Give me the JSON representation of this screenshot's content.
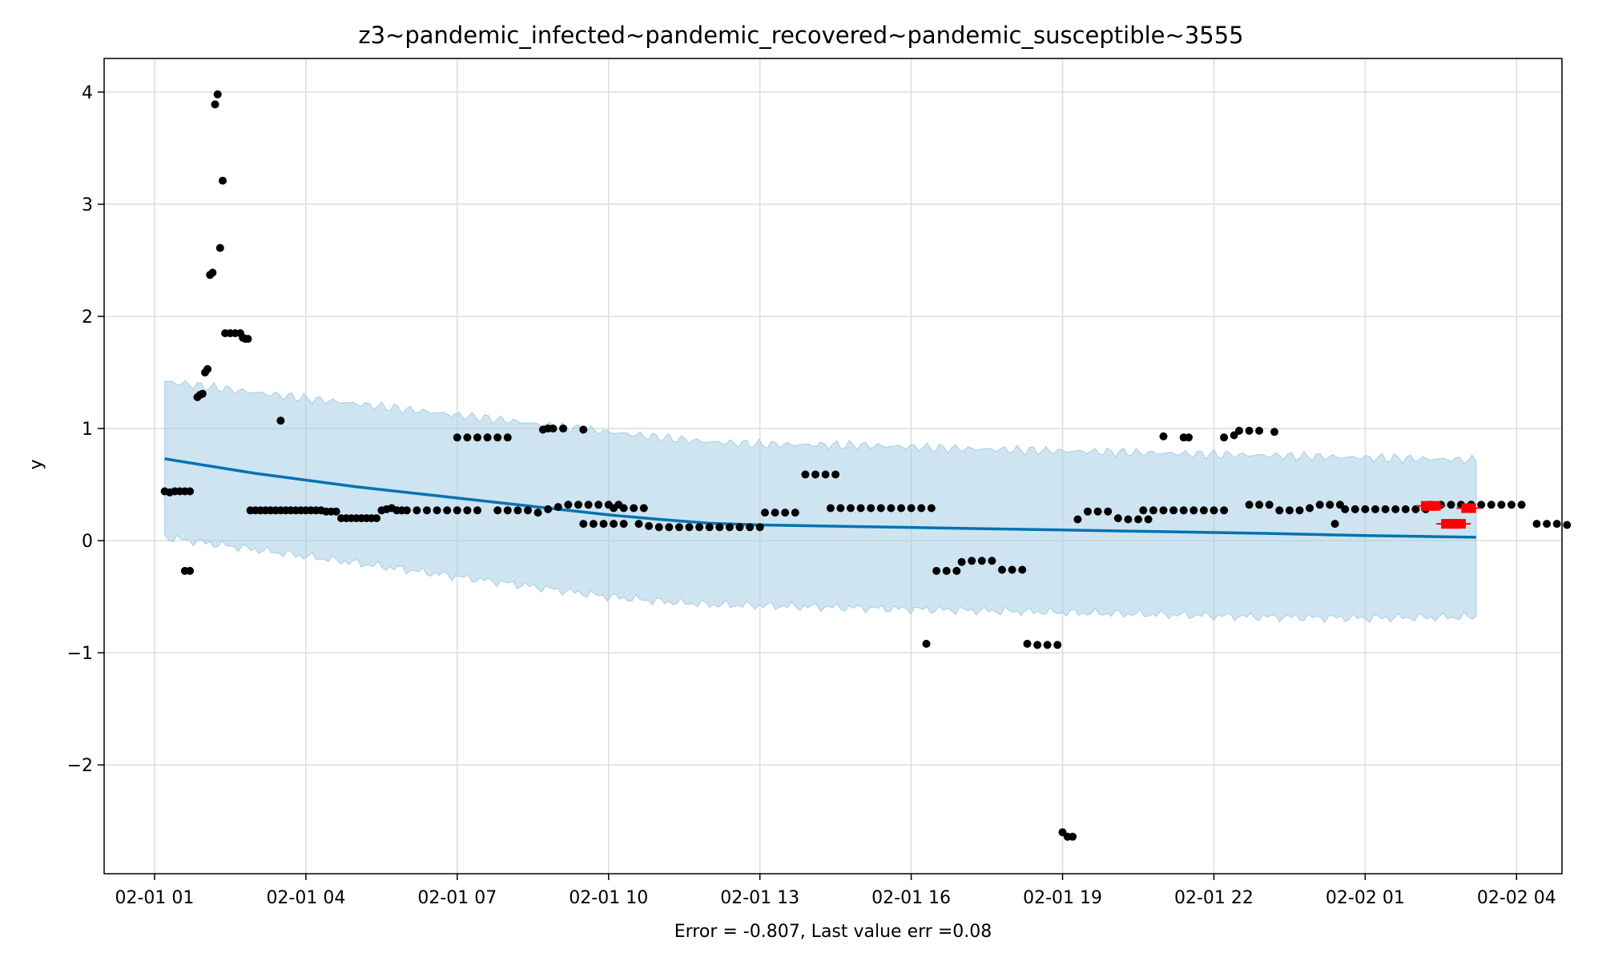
{
  "chart_data": {
    "type": "scatter",
    "title": "z3~pandemic_infected~pandemic_recovered~pandemic_susceptible~3555",
    "xlabel": "Error = -0.807, Last value err =0.08",
    "ylabel": "y",
    "x_unit": "hours",
    "xlim": [
      0.0,
      28.9
    ],
    "ylim": [
      -2.97,
      4.3
    ],
    "x_ticks": [
      {
        "value": 1,
        "label": "02-01 01"
      },
      {
        "value": 4,
        "label": "02-01 04"
      },
      {
        "value": 7,
        "label": "02-01 07"
      },
      {
        "value": 10,
        "label": "02-01 10"
      },
      {
        "value": 13,
        "label": "02-01 13"
      },
      {
        "value": 16,
        "label": "02-01 16"
      },
      {
        "value": 19,
        "label": "02-01 19"
      },
      {
        "value": 22,
        "label": "02-01 22"
      },
      {
        "value": 25,
        "label": "02-02 01"
      },
      {
        "value": 28,
        "label": "02-02 04"
      }
    ],
    "y_ticks": [
      {
        "value": -2,
        "label": "−2"
      },
      {
        "value": -1,
        "label": "−1"
      },
      {
        "value": 0,
        "label": "0"
      },
      {
        "value": 1,
        "label": "1"
      },
      {
        "value": 2,
        "label": "2"
      },
      {
        "value": 3,
        "label": "3"
      },
      {
        "value": 4,
        "label": "4"
      }
    ],
    "grid": true,
    "colors": {
      "observed": "#000000",
      "forecast_line": "#0072b2",
      "band_fill": "#a6cee3",
      "test_points": "#ff0000",
      "grid": "#dddddd"
    },
    "forecast": {
      "x": [
        1.2,
        3,
        5,
        7,
        9,
        10,
        11,
        12,
        13,
        15,
        17,
        19,
        21,
        23,
        25,
        27.2
      ],
      "yhat": [
        0.73,
        0.6,
        0.48,
        0.38,
        0.28,
        0.23,
        0.19,
        0.155,
        0.14,
        0.125,
        0.11,
        0.095,
        0.08,
        0.065,
        0.045,
        0.03
      ],
      "upper": [
        1.42,
        1.32,
        1.22,
        1.12,
        1.02,
        0.97,
        0.92,
        0.88,
        0.86,
        0.85,
        0.82,
        0.8,
        0.78,
        0.76,
        0.74,
        0.72
      ],
      "lower": [
        0.03,
        -0.08,
        -0.2,
        -0.32,
        -0.44,
        -0.5,
        -0.54,
        -0.57,
        -0.58,
        -0.6,
        -0.62,
        -0.64,
        -0.66,
        -0.68,
        -0.69,
        -0.68
      ]
    },
    "observed": [
      [
        1.2,
        0.44
      ],
      [
        1.3,
        0.43
      ],
      [
        1.4,
        0.44
      ],
      [
        1.5,
        0.44
      ],
      [
        1.6,
        0.44
      ],
      [
        1.7,
        0.44
      ],
      [
        1.6,
        -0.27
      ],
      [
        1.7,
        -0.27
      ],
      [
        1.85,
        1.28
      ],
      [
        1.9,
        1.3
      ],
      [
        1.95,
        1.31
      ],
      [
        2.0,
        1.5
      ],
      [
        2.05,
        1.53
      ],
      [
        2.1,
        2.37
      ],
      [
        2.15,
        2.39
      ],
      [
        2.2,
        3.89
      ],
      [
        2.25,
        3.98
      ],
      [
        2.3,
        2.61
      ],
      [
        2.35,
        3.21
      ],
      [
        2.4,
        1.85
      ],
      [
        2.5,
        1.85
      ],
      [
        2.6,
        1.85
      ],
      [
        2.7,
        1.85
      ],
      [
        2.75,
        1.81
      ],
      [
        2.8,
        1.8
      ],
      [
        2.85,
        1.8
      ],
      [
        2.9,
        0.27
      ],
      [
        3.0,
        0.27
      ],
      [
        3.1,
        0.27
      ],
      [
        3.2,
        0.27
      ],
      [
        3.3,
        0.27
      ],
      [
        3.4,
        0.27
      ],
      [
        3.5,
        0.27
      ],
      [
        3.6,
        0.27
      ],
      [
        3.7,
        0.27
      ],
      [
        3.8,
        0.27
      ],
      [
        3.9,
        0.27
      ],
      [
        4.0,
        0.27
      ],
      [
        4.1,
        0.27
      ],
      [
        4.2,
        0.27
      ],
      [
        4.3,
        0.27
      ],
      [
        4.4,
        0.26
      ],
      [
        4.5,
        0.26
      ],
      [
        4.6,
        0.26
      ],
      [
        3.5,
        1.07
      ],
      [
        4.7,
        0.2
      ],
      [
        4.8,
        0.2
      ],
      [
        4.9,
        0.2
      ],
      [
        5.0,
        0.2
      ],
      [
        5.1,
        0.2
      ],
      [
        5.2,
        0.2
      ],
      [
        5.3,
        0.2
      ],
      [
        5.4,
        0.2
      ],
      [
        5.5,
        0.27
      ],
      [
        5.6,
        0.28
      ],
      [
        5.7,
        0.29
      ],
      [
        5.8,
        0.27
      ],
      [
        5.9,
        0.27
      ],
      [
        6.0,
        0.27
      ],
      [
        6.2,
        0.27
      ],
      [
        6.4,
        0.27
      ],
      [
        6.6,
        0.27
      ],
      [
        6.8,
        0.27
      ],
      [
        7.0,
        0.27
      ],
      [
        7.2,
        0.27
      ],
      [
        7.4,
        0.27
      ],
      [
        7.0,
        0.92
      ],
      [
        7.2,
        0.92
      ],
      [
        7.4,
        0.92
      ],
      [
        7.6,
        0.92
      ],
      [
        7.8,
        0.92
      ],
      [
        8.0,
        0.92
      ],
      [
        7.8,
        0.27
      ],
      [
        8.0,
        0.27
      ],
      [
        8.2,
        0.27
      ],
      [
        8.4,
        0.27
      ],
      [
        8.6,
        0.25
      ],
      [
        8.8,
        0.28
      ],
      [
        9.0,
        0.3
      ],
      [
        8.7,
        0.99
      ],
      [
        8.8,
        1.0
      ],
      [
        8.9,
        1.0
      ],
      [
        9.1,
        1.0
      ],
      [
        9.5,
        0.99
      ],
      [
        9.2,
        0.32
      ],
      [
        9.4,
        0.32
      ],
      [
        9.6,
        0.32
      ],
      [
        9.8,
        0.32
      ],
      [
        10.0,
        0.32
      ],
      [
        10.2,
        0.32
      ],
      [
        9.5,
        0.15
      ],
      [
        9.7,
        0.15
      ],
      [
        9.9,
        0.15
      ],
      [
        10.1,
        0.15
      ],
      [
        10.3,
        0.15
      ],
      [
        10.1,
        0.29
      ],
      [
        10.3,
        0.29
      ],
      [
        10.5,
        0.29
      ],
      [
        10.7,
        0.29
      ],
      [
        10.6,
        0.15
      ],
      [
        10.8,
        0.13
      ],
      [
        11.0,
        0.12
      ],
      [
        11.2,
        0.12
      ],
      [
        11.4,
        0.12
      ],
      [
        11.6,
        0.12
      ],
      [
        11.8,
        0.12
      ],
      [
        12.0,
        0.12
      ],
      [
        12.2,
        0.12
      ],
      [
        12.4,
        0.12
      ],
      [
        12.6,
        0.12
      ],
      [
        12.8,
        0.12
      ],
      [
        13.0,
        0.12
      ],
      [
        13.1,
        0.25
      ],
      [
        13.3,
        0.25
      ],
      [
        13.5,
        0.25
      ],
      [
        13.7,
        0.25
      ],
      [
        13.9,
        0.59
      ],
      [
        14.1,
        0.59
      ],
      [
        14.3,
        0.59
      ],
      [
        14.5,
        0.59
      ],
      [
        14.4,
        0.29
      ],
      [
        14.6,
        0.29
      ],
      [
        14.8,
        0.29
      ],
      [
        15.0,
        0.29
      ],
      [
        15.2,
        0.29
      ],
      [
        15.4,
        0.29
      ],
      [
        15.6,
        0.29
      ],
      [
        15.8,
        0.29
      ],
      [
        16.0,
        0.29
      ],
      [
        16.2,
        0.29
      ],
      [
        16.4,
        0.29
      ],
      [
        16.3,
        -0.92
      ],
      [
        16.5,
        -0.27
      ],
      [
        16.7,
        -0.27
      ],
      [
        16.9,
        -0.27
      ],
      [
        17.0,
        -0.19
      ],
      [
        17.2,
        -0.18
      ],
      [
        17.4,
        -0.18
      ],
      [
        17.6,
        -0.18
      ],
      [
        17.8,
        -0.26
      ],
      [
        18.0,
        -0.26
      ],
      [
        18.2,
        -0.26
      ],
      [
        18.3,
        -0.92
      ],
      [
        18.5,
        -0.93
      ],
      [
        18.7,
        -0.93
      ],
      [
        18.9,
        -0.93
      ],
      [
        19.0,
        -2.6
      ],
      [
        19.1,
        -2.64
      ],
      [
        19.2,
        -2.64
      ],
      [
        19.3,
        0.19
      ],
      [
        19.5,
        0.26
      ],
      [
        19.7,
        0.26
      ],
      [
        19.9,
        0.26
      ],
      [
        20.1,
        0.2
      ],
      [
        20.3,
        0.19
      ],
      [
        20.5,
        0.19
      ],
      [
        20.7,
        0.19
      ],
      [
        20.6,
        0.27
      ],
      [
        20.8,
        0.27
      ],
      [
        21.0,
        0.27
      ],
      [
        21.2,
        0.27
      ],
      [
        21.4,
        0.27
      ],
      [
        21.6,
        0.27
      ],
      [
        21.8,
        0.27
      ],
      [
        22.0,
        0.27
      ],
      [
        22.2,
        0.27
      ],
      [
        21.0,
        0.93
      ],
      [
        21.4,
        0.92
      ],
      [
        21.5,
        0.92
      ],
      [
        22.2,
        0.92
      ],
      [
        22.4,
        0.94
      ],
      [
        22.5,
        0.98
      ],
      [
        22.7,
        0.98
      ],
      [
        22.9,
        0.98
      ],
      [
        23.2,
        0.97
      ],
      [
        22.7,
        0.32
      ],
      [
        22.9,
        0.32
      ],
      [
        23.1,
        0.32
      ],
      [
        23.3,
        0.27
      ],
      [
        23.5,
        0.27
      ],
      [
        23.7,
        0.27
      ],
      [
        23.9,
        0.29
      ],
      [
        24.1,
        0.32
      ],
      [
        24.3,
        0.32
      ],
      [
        24.5,
        0.32
      ],
      [
        24.4,
        0.15
      ],
      [
        24.6,
        0.28
      ],
      [
        24.8,
        0.28
      ],
      [
        25.0,
        0.28
      ],
      [
        25.2,
        0.28
      ],
      [
        25.4,
        0.28
      ],
      [
        25.6,
        0.28
      ],
      [
        25.8,
        0.28
      ],
      [
        26.0,
        0.28
      ],
      [
        26.2,
        0.28
      ],
      [
        26.3,
        0.32
      ],
      [
        26.5,
        0.32
      ],
      [
        26.7,
        0.32
      ],
      [
        26.9,
        0.32
      ],
      [
        27.1,
        0.32
      ],
      [
        27.3,
        0.32
      ],
      [
        27.5,
        0.32
      ],
      [
        27.7,
        0.32
      ],
      [
        27.9,
        0.32
      ],
      [
        28.1,
        0.32
      ],
      [
        28.4,
        0.15
      ],
      [
        28.6,
        0.15
      ],
      [
        28.8,
        0.15
      ],
      [
        29.0,
        0.14
      ]
    ],
    "test_points": [
      [
        26.2,
        0.31
      ],
      [
        26.3,
        0.31
      ],
      [
        26.4,
        0.31
      ],
      [
        26.6,
        0.15
      ],
      [
        26.7,
        0.15
      ],
      [
        26.8,
        0.15
      ],
      [
        26.9,
        0.15
      ],
      [
        27.0,
        0.29
      ],
      [
        27.1,
        0.29
      ]
    ]
  }
}
